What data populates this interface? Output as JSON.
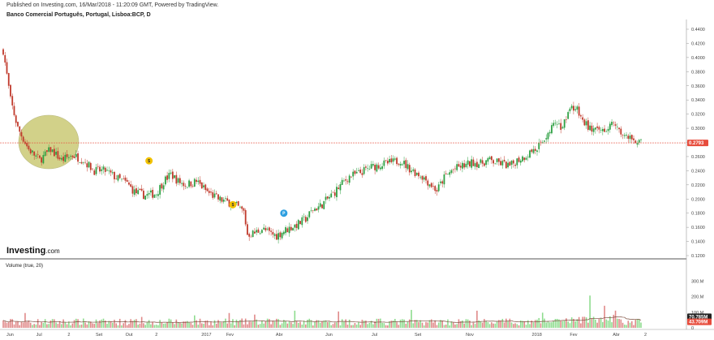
{
  "header": {
    "published": "Published on Investing.com, 16/Mar/2018 - 11:20:09 GMT, Powered by TradingView.",
    "title": "Banco Comercial Português, Portugal, Lisboa:BCP, D"
  },
  "logo": {
    "text": "Investing",
    "suffix": ".com"
  },
  "colors": {
    "up": "#2ea043",
    "down": "#c0392b",
    "vol_up": "#8fdc8f",
    "vol_down": "#e08a8a",
    "price_line": "#e74c3c",
    "vol_tag": "#222222",
    "circle_fill": "#b5b33c",
    "event_dividend": "#f2c200",
    "event_split": "#2d9fe0"
  },
  "chart_data": [
    {
      "type": "candlestick",
      "title": "Banco Comercial Português, Portugal, Lisboa:BCP, D",
      "ylim": [
        0.12,
        0.44
      ],
      "y_ticks": [
        "0.4400",
        "0.4200",
        "0.4000",
        "0.3800",
        "0.3600",
        "0.3400",
        "0.3200",
        "0.3000",
        "0.2800",
        "0.2600",
        "0.2400",
        "0.2200",
        "0.2000",
        "0.1800",
        "0.1600",
        "0.1400",
        "0.1200"
      ],
      "x_ticks": [
        "Jun",
        "Jul",
        "2",
        "Set",
        "Out",
        "2",
        "2017",
        "Fev",
        "Abr",
        "Jun",
        "Jul",
        "Set",
        "Nov",
        "2018",
        "Fev",
        "Abr",
        "2"
      ],
      "last_price": 0.2793,
      "last_price_label": "0.2793",
      "anchors": [
        [
          0,
          0.41
        ],
        [
          4,
          0.34
        ],
        [
          8,
          0.3
        ],
        [
          14,
          0.27
        ],
        [
          20,
          0.255
        ],
        [
          26,
          0.27
        ],
        [
          32,
          0.255
        ],
        [
          38,
          0.262
        ],
        [
          44,
          0.255
        ],
        [
          50,
          0.24
        ],
        [
          56,
          0.24
        ],
        [
          62,
          0.23
        ],
        [
          68,
          0.222
        ],
        [
          72,
          0.21
        ],
        [
          78,
          0.205
        ],
        [
          84,
          0.208
        ],
        [
          88,
          0.225
        ],
        [
          92,
          0.235
        ],
        [
          96,
          0.225
        ],
        [
          100,
          0.22
        ],
        [
          106,
          0.225
        ],
        [
          112,
          0.21
        ],
        [
          118,
          0.2
        ],
        [
          124,
          0.195
        ],
        [
          128,
          0.19
        ],
        [
          132,
          0.182
        ],
        [
          134,
          0.15
        ],
        [
          138,
          0.152
        ],
        [
          142,
          0.158
        ],
        [
          146,
          0.152
        ],
        [
          150,
          0.148
        ],
        [
          154,
          0.155
        ],
        [
          158,
          0.16
        ],
        [
          162,
          0.165
        ],
        [
          166,
          0.172
        ],
        [
          170,
          0.185
        ],
        [
          174,
          0.19
        ],
        [
          178,
          0.2
        ],
        [
          182,
          0.21
        ],
        [
          186,
          0.222
        ],
        [
          190,
          0.232
        ],
        [
          194,
          0.235
        ],
        [
          198,
          0.24
        ],
        [
          202,
          0.245
        ],
        [
          206,
          0.248
        ],
        [
          210,
          0.25
        ],
        [
          214,
          0.252
        ],
        [
          218,
          0.255
        ],
        [
          222,
          0.245
        ],
        [
          226,
          0.238
        ],
        [
          230,
          0.232
        ],
        [
          234,
          0.222
        ],
        [
          238,
          0.212
        ],
        [
          242,
          0.23
        ],
        [
          246,
          0.24
        ],
        [
          250,
          0.245
        ],
        [
          254,
          0.248
        ],
        [
          258,
          0.252
        ],
        [
          262,
          0.25
        ],
        [
          266,
          0.255
        ],
        [
          270,
          0.252
        ],
        [
          274,
          0.25
        ],
        [
          278,
          0.246
        ],
        [
          282,
          0.255
        ],
        [
          286,
          0.26
        ],
        [
          290,
          0.268
        ],
        [
          294,
          0.275
        ],
        [
          298,
          0.29
        ],
        [
          302,
          0.305
        ],
        [
          306,
          0.3
        ],
        [
          308,
          0.31
        ],
        [
          310,
          0.325
        ],
        [
          314,
          0.33
        ],
        [
          318,
          0.31
        ],
        [
          322,
          0.3
        ],
        [
          326,
          0.295
        ],
        [
          330,
          0.3
        ],
        [
          334,
          0.305
        ],
        [
          338,
          0.295
        ],
        [
          342,
          0.288
        ],
        [
          346,
          0.285
        ],
        [
          350,
          0.279
        ]
      ]
    },
    {
      "type": "bar",
      "title": "Volume (true, 20)",
      "ylim": [
        0,
        380
      ],
      "y_ticks": [
        "300.M",
        "200.M",
        "100.M",
        "0"
      ],
      "volume_label": "Volume (true, 20)",
      "sma_last": 70.785,
      "sma_last_label": "70.785M",
      "last_volume": 43.709,
      "last_volume_label": "43.709M",
      "spikes": [
        [
          12,
          95
        ],
        [
          76,
          70
        ],
        [
          105,
          80
        ],
        [
          124,
          95
        ],
        [
          138,
          85
        ],
        [
          160,
          110
        ],
        [
          184,
          105
        ],
        [
          224,
          115
        ],
        [
          260,
          110
        ],
        [
          296,
          90
        ],
        [
          322,
          205
        ],
        [
          330,
          120
        ],
        [
          336,
          90
        ]
      ]
    }
  ],
  "events": [
    {
      "type": "dividend",
      "label": "$",
      "x_index": 80,
      "y": 0.254
    },
    {
      "type": "dividend",
      "label": "$",
      "x_index": 126,
      "y": 0.192
    },
    {
      "type": "split",
      "label": "P",
      "x_index": 154,
      "y": 0.18
    }
  ]
}
